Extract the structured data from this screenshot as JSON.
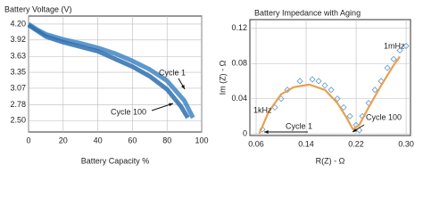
{
  "chart_data": [
    {
      "type": "line",
      "title": "Battery Voltage (V)",
      "x_label": "Battery Capacity %",
      "xlim": [
        0,
        100
      ],
      "xticks": [
        0,
        20,
        40,
        60,
        80,
        100
      ],
      "ylim": [
        2.3,
        4.34
      ],
      "yticks": [
        {
          "value": 2.5,
          "label": "2.50"
        },
        2.78,
        3.07,
        3.35,
        3.63,
        3.92,
        {
          "value": 4.2,
          "label": "4.20"
        }
      ],
      "grid": true,
      "series": [
        {
          "name": "Cycle 1",
          "color": "#3f86c6",
          "style": "line",
          "x": [
            0,
            5,
            10,
            20,
            30,
            40,
            50,
            60,
            70,
            80,
            90,
            95
          ],
          "values": [
            4.2,
            4.1,
            4.02,
            3.93,
            3.86,
            3.78,
            3.68,
            3.55,
            3.4,
            3.2,
            2.85,
            2.55
          ]
        },
        {
          "name": "Cycle 100",
          "color": "#2f6fae",
          "style": "line",
          "x": [
            0,
            10,
            20,
            40,
            60,
            70,
            80,
            88,
            92
          ],
          "values": [
            4.18,
            3.98,
            3.88,
            3.72,
            3.45,
            3.28,
            3.05,
            2.75,
            2.55
          ]
        }
      ]
    },
    {
      "type": "line",
      "title": "Battery Impedance with Aging",
      "x_label": "R(Z) - Ω",
      "y_label": "Im (Z) - Ω",
      "xlim": [
        0.05,
        0.307
      ],
      "xticks": [
        0.06,
        0.14,
        0.22,
        {
          "value": 0.3,
          "label": "0.30"
        }
      ],
      "ylim": [
        -0.002,
        0.13
      ],
      "yticks": [
        0,
        0.04,
        0.08,
        0.12
      ],
      "grid": true,
      "annotations": [
        "1mHz",
        "1kHz"
      ],
      "series": [
        {
          "name": "Cycle 100",
          "color": "#5a9bd5",
          "style": "markers",
          "x": [
            0.07,
            0.09,
            0.11,
            0.13,
            0.15,
            0.17,
            0.19,
            0.2,
            0.21,
            0.22,
            0.23,
            0.24,
            0.25,
            0.26,
            0.27,
            0.28,
            0.29,
            0.3,
            0.1,
            0.16,
            0.18,
            0.225
          ],
          "values": [
            0.005,
            0.03,
            0.05,
            0.06,
            0.062,
            0.055,
            0.04,
            0.03,
            0.02,
            0.01,
            0.02,
            0.035,
            0.05,
            0.06,
            0.075,
            0.085,
            0.095,
            0.1,
            0.04,
            0.06,
            0.05,
            0.004
          ]
        },
        {
          "name": "Cycle 1",
          "color": "#e8a050",
          "style": "line",
          "x": [
            0.065,
            0.08,
            0.1,
            0.12,
            0.145,
            0.17,
            0.19,
            0.205,
            0.215,
            0.225,
            0.24,
            0.26,
            0.28,
            0.29
          ],
          "values": [
            0,
            0.025,
            0.045,
            0.053,
            0.056,
            0.05,
            0.035,
            0.018,
            0.005,
            0.01,
            0.03,
            0.055,
            0.078,
            0.088
          ]
        }
      ]
    }
  ]
}
